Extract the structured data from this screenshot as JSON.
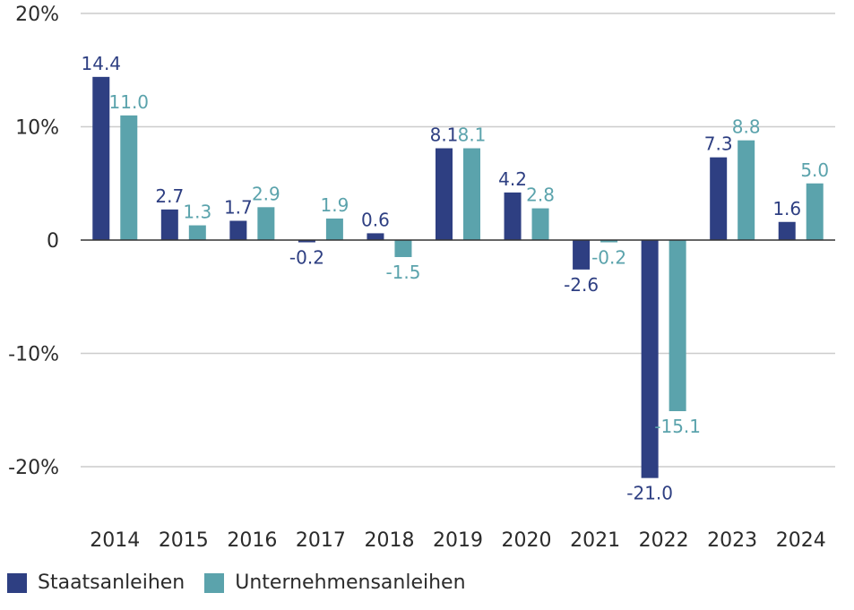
{
  "colors": {
    "staat": "#2e3f82",
    "unternehmen": "#5ba3ac",
    "grid": "#cccccc",
    "axis": "#333333"
  },
  "chart_data": {
    "type": "bar",
    "categories": [
      "2014",
      "2015",
      "2016",
      "2017",
      "2018",
      "2019",
      "2020",
      "2021",
      "2022",
      "2023",
      "2024"
    ],
    "series": [
      {
        "name": "Staatsanleihen",
        "values": [
          14.4,
          2.7,
          1.7,
          -0.2,
          0.6,
          8.1,
          4.2,
          -2.6,
          -21.0,
          7.3,
          1.6
        ]
      },
      {
        "name": "Unternehmensanleihen",
        "values": [
          11.0,
          1.3,
          2.9,
          1.9,
          -1.5,
          8.1,
          2.8,
          -0.2,
          -15.1,
          8.8,
          5.0
        ]
      }
    ],
    "yticks": [
      20,
      10,
      0,
      -10,
      -20
    ],
    "ytick_labels": [
      "20%",
      "10%",
      "0",
      "-10%",
      "-20%"
    ],
    "ylim": [
      -24,
      20
    ],
    "title": "",
    "xlabel": "",
    "ylabel": "",
    "grid": true,
    "legend_position": "bottom-left"
  }
}
